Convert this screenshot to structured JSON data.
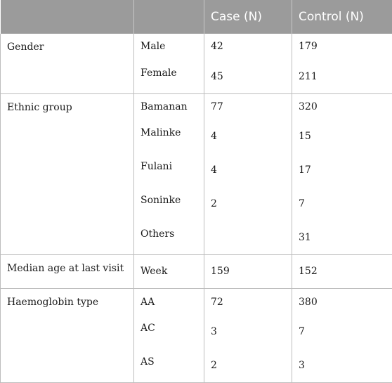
{
  "header": {
    "col1": "",
    "col2": "",
    "case": "Case (N)",
    "control": "Control (N)"
  },
  "groups": [
    {
      "label": "Gender",
      "rows": [
        {
          "sub": "Male",
          "case": "42",
          "control": "179"
        },
        {
          "sub": "Female",
          "case": "45",
          "control": "211"
        }
      ]
    },
    {
      "label": "Ethnic group",
      "rows": [
        {
          "sub": "Bamanan",
          "case": "77",
          "control": "320"
        },
        {
          "sub": "Malinke",
          "case": "4",
          "control": "15"
        },
        {
          "sub": "Fulani",
          "case": "4",
          "control": "17"
        },
        {
          "sub": "Soninke",
          "case": "2",
          "control": "7"
        },
        {
          "sub": "Others",
          "case": "",
          "control": "31"
        }
      ]
    },
    {
      "label": "Median age at last visit",
      "rows": [
        {
          "sub": "Week",
          "case": "159",
          "control": "152"
        }
      ]
    },
    {
      "label": "Haemoglobin type",
      "rows": [
        {
          "sub": "AA",
          "case": "72",
          "control": "380"
        },
        {
          "sub": "AC",
          "case": "3",
          "control": "7"
        },
        {
          "sub": "AS",
          "case": "2",
          "control": "3"
        }
      ]
    }
  ]
}
